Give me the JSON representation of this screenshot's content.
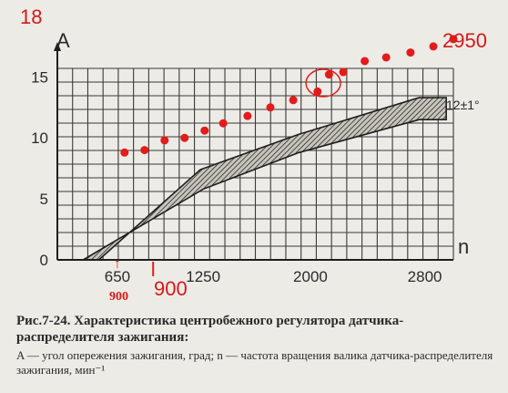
{
  "caption": {
    "title": "Рис.7-24. Характеристика центробежного регулятора датчика-распределителя зажигания:",
    "legend": "A — угол опережения зажигания, град; n — частота вращения валика датчика-распределителя зажигания, мин⁻¹"
  },
  "chart_data": {
    "type": "area",
    "ylabel": "A",
    "xlabel": "n",
    "x_ticks": [
      "650",
      "1250",
      "2000",
      "2800"
    ],
    "y_ticks": [
      "0",
      "5",
      "10",
      "15"
    ],
    "xlim": [
      230,
      3000
    ],
    "ylim": [
      0,
      15.7
    ],
    "grid": true,
    "band_note": "12±1°",
    "band": {
      "upper": [
        [
          520,
          0
        ],
        [
          1230,
          7.4
        ],
        [
          1920,
          10.3
        ],
        [
          2760,
          13.3
        ],
        [
          2950,
          13.3
        ]
      ],
      "lower": [
        [
          410,
          0
        ],
        [
          1250,
          5.8
        ],
        [
          1920,
          8.8
        ],
        [
          2760,
          11.5
        ],
        [
          2950,
          11.5
        ]
      ]
    },
    "series": [
      {
        "x": [
          700,
          840,
          980,
          1120,
          1260,
          1390,
          1560,
          1720,
          1880,
          2050,
          2130,
          2230,
          2380,
          2530,
          2700,
          2860,
          3000
        ],
        "y": [
          8.8,
          9.0,
          9.8,
          10.0,
          10.6,
          11.2,
          11.8,
          12.5,
          13.1,
          13.8,
          15.2,
          15.4,
          16.3,
          16.6,
          17.0,
          17.5,
          18.1
        ]
      }
    ]
  },
  "annotations": {
    "top_left": "18",
    "top_right": "2950",
    "tick_note": "900",
    "handwritten_tick": "900",
    "arrow": "↑"
  },
  "colors": {
    "ink": "#2a2a2a",
    "grid": "#3a3a3a",
    "band_fill": "#c8c5bc",
    "marker": "#e31b1b"
  }
}
